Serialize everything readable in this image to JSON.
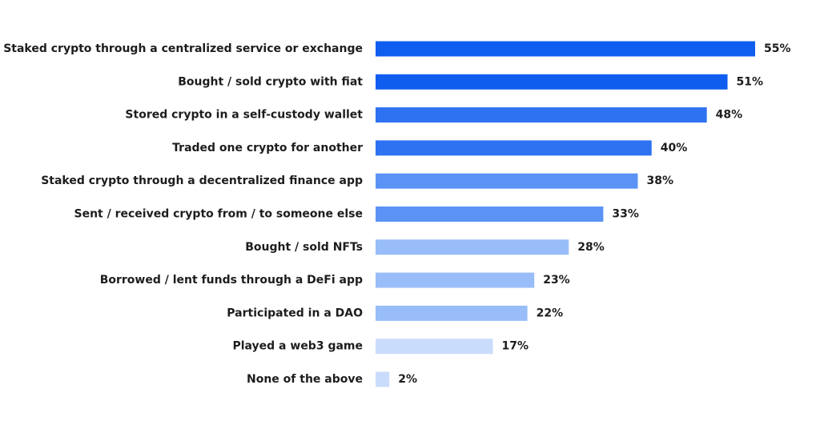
{
  "chart_data": {
    "type": "bar",
    "orientation": "horizontal",
    "categories": [
      "Staked crypto through a centralized service or exchange",
      "Bought / sold crypto with fiat",
      "Stored crypto in a self-custody wallet",
      "Traded one crypto for another",
      "Staked crypto through a decentralized finance app",
      "Sent / received crypto from / to someone else",
      "Bought / sold NFTs",
      "Borrowed / lent funds through a DeFi app",
      "Participated in a DAO",
      "Played a web3 game",
      "None of the above"
    ],
    "values": [
      55,
      51,
      48,
      40,
      38,
      33,
      28,
      23,
      22,
      17,
      2
    ],
    "value_labels": [
      "55%",
      "51%",
      "48%",
      "40%",
      "38%",
      "33%",
      "28%",
      "23%",
      "22%",
      "17%",
      "2%"
    ],
    "value_unit": "%",
    "colors": [
      "#0f5ef0",
      "#0f5ef0",
      "#2e72f2",
      "#2e72f2",
      "#5a93f5",
      "#5a93f5",
      "#99bdf9",
      "#99bdf9",
      "#99bdf9",
      "#cadcfc",
      "#cadcfc"
    ],
    "title": "",
    "xlabel": "",
    "ylabel": "",
    "xlim": [
      0,
      55
    ],
    "grid": false,
    "legend": "none"
  }
}
